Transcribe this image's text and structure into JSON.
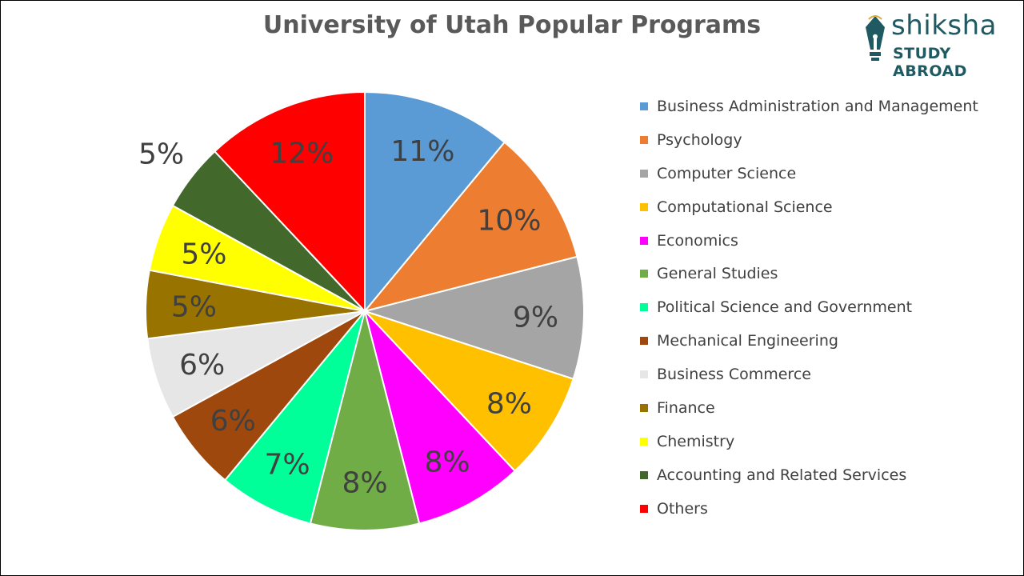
{
  "chart_data": {
    "type": "pie",
    "title": "University of Utah Popular Programs",
    "unit": "%",
    "categories": [
      "Business Administration and Management",
      "Psychology",
      "Computer Science",
      "Computational Science",
      "Economics",
      "General Studies",
      "Political Science and Government",
      "Mechanical Engineering",
      "Business Commerce",
      "Finance",
      "Chemistry",
      "Accounting and Related Services",
      "Others"
    ],
    "values": [
      11,
      10,
      9,
      8,
      8,
      8,
      7,
      6,
      6,
      5,
      5,
      5,
      12
    ],
    "colors": [
      "#5b9bd5",
      "#ed7d31",
      "#a5a5a5",
      "#ffc000",
      "#ff00ff",
      "#70ad47",
      "#00ff99",
      "#9e480e",
      "#e7e6e6",
      "#997300",
      "#ffff00",
      "#43682b",
      "#ff0000"
    ],
    "legend_position": "right"
  },
  "logo": {
    "name": "shiksha",
    "subtitle": "STUDY ABROAD",
    "icon": "fountain-pen-nib-icon",
    "color": "#1f5a63"
  }
}
